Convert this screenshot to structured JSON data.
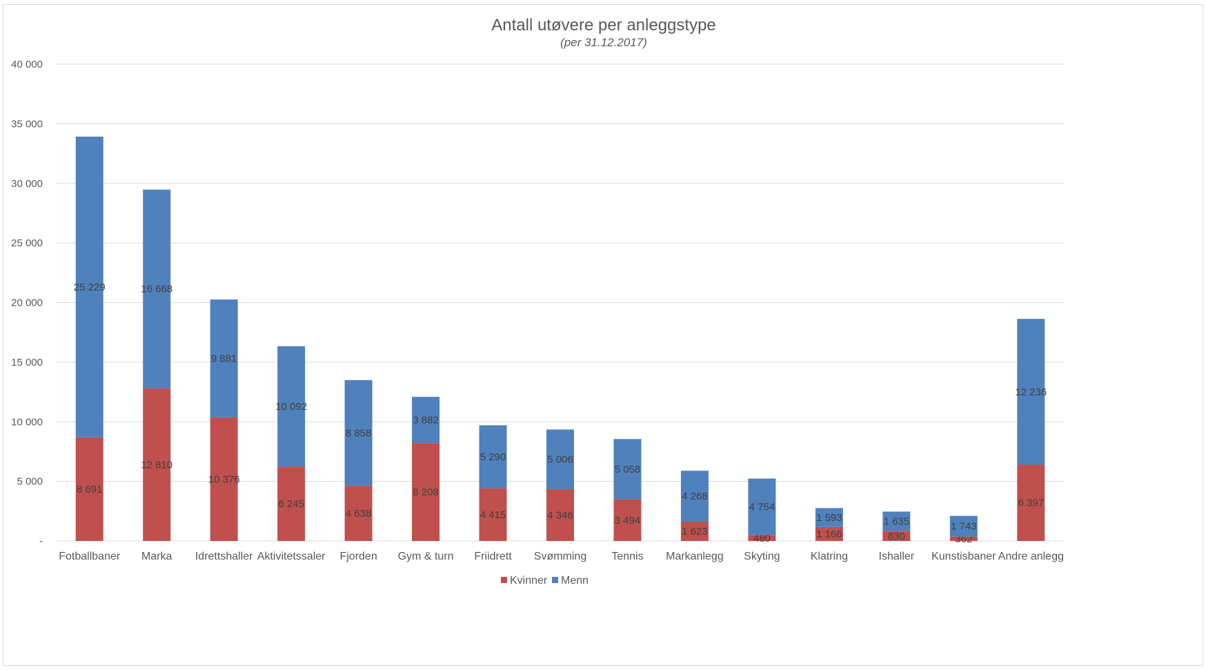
{
  "chart_data": {
    "type": "bar",
    "stacked": true,
    "title": "Antall utøvere per anleggstype",
    "subtitle": "(per 31.12.2017)",
    "categories": [
      "Fotballbaner",
      "Marka",
      "Idrettshaller",
      "Aktivitetssaler",
      "Fjorden",
      "Gym & turn",
      "Friidrett",
      "Svømming",
      "Tennis",
      "Markanlegg",
      "Skyting",
      "Klatring",
      "Ishaller",
      "Kunstisbaner",
      "Andre anlegg"
    ],
    "series": [
      {
        "name": "Kvinner",
        "color": "#c0504d",
        "values": [
          8691,
          12810,
          10376,
          6245,
          4638,
          8208,
          4415,
          4346,
          3494,
          1623,
          480,
          1166,
          830,
          362,
          6397
        ],
        "labels": [
          "8 691",
          "12 810",
          "10 376",
          "6 245",
          "4 638",
          "8 208",
          "4 415",
          "4 346",
          "3 494",
          "1 623",
          "480",
          "1 166",
          "830",
          "362",
          "6 397"
        ]
      },
      {
        "name": "Menn",
        "color": "#4f81bd",
        "values": [
          25229,
          16668,
          9881,
          10092,
          8858,
          3882,
          5290,
          5006,
          5058,
          4268,
          4754,
          1593,
          1635,
          1743,
          12236
        ],
        "labels": [
          "25 229",
          "16 668",
          "9 881",
          "10 092",
          "8 858",
          "3 882",
          "5 290",
          "5 006",
          "5 058",
          "4 268",
          "4 754",
          "1 593",
          "1 635",
          "1 743",
          "12 236"
        ]
      }
    ],
    "ylim": [
      0,
      40000
    ],
    "yticks": [
      0,
      5000,
      10000,
      15000,
      20000,
      25000,
      30000,
      35000,
      40000
    ],
    "ytick_labels": [
      "-",
      "5 000",
      "10 000",
      "15 000",
      "20 000",
      "25 000",
      "30 000",
      "35 000",
      "40 000"
    ],
    "grid": true,
    "legend": "bottom-center"
  }
}
